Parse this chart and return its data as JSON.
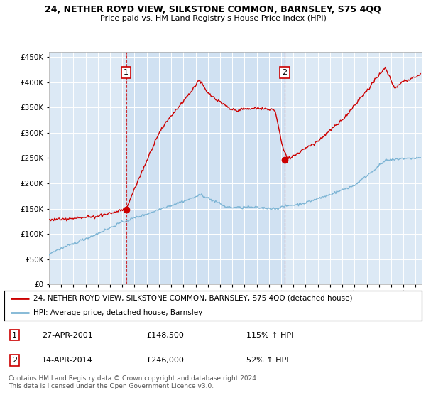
{
  "title": "24, NETHER ROYD VIEW, SILKSTONE COMMON, BARNSLEY, S75 4QQ",
  "subtitle": "Price paid vs. HM Land Registry's House Price Index (HPI)",
  "ylim": [
    0,
    460000
  ],
  "yticks": [
    0,
    50000,
    100000,
    150000,
    200000,
    250000,
    300000,
    350000,
    400000,
    450000
  ],
  "xlim_start": 1995.0,
  "xlim_end": 2025.5,
  "plot_bg_color": "#dce9f5",
  "legend_line1": "24, NETHER ROYD VIEW, SILKSTONE COMMON, BARNSLEY, S75 4QQ (detached house)",
  "legend_line2": "HPI: Average price, detached house, Barnsley",
  "transaction1_date": 2001.32,
  "transaction1_price": 148500,
  "transaction2_date": 2014.29,
  "transaction2_price": 246000,
  "footer_line1": "Contains HM Land Registry data © Crown copyright and database right 2024.",
  "footer_line2": "This data is licensed under the Open Government Licence v3.0.",
  "red_color": "#cc0000",
  "blue_color": "#7cb4d4",
  "shade_color": "#c8ddf0",
  "table_row1": [
    "1",
    "27-APR-2001",
    "£148,500",
    "115% ↑ HPI"
  ],
  "table_row2": [
    "2",
    "14-APR-2014",
    "£246,000",
    "52% ↑ HPI"
  ]
}
